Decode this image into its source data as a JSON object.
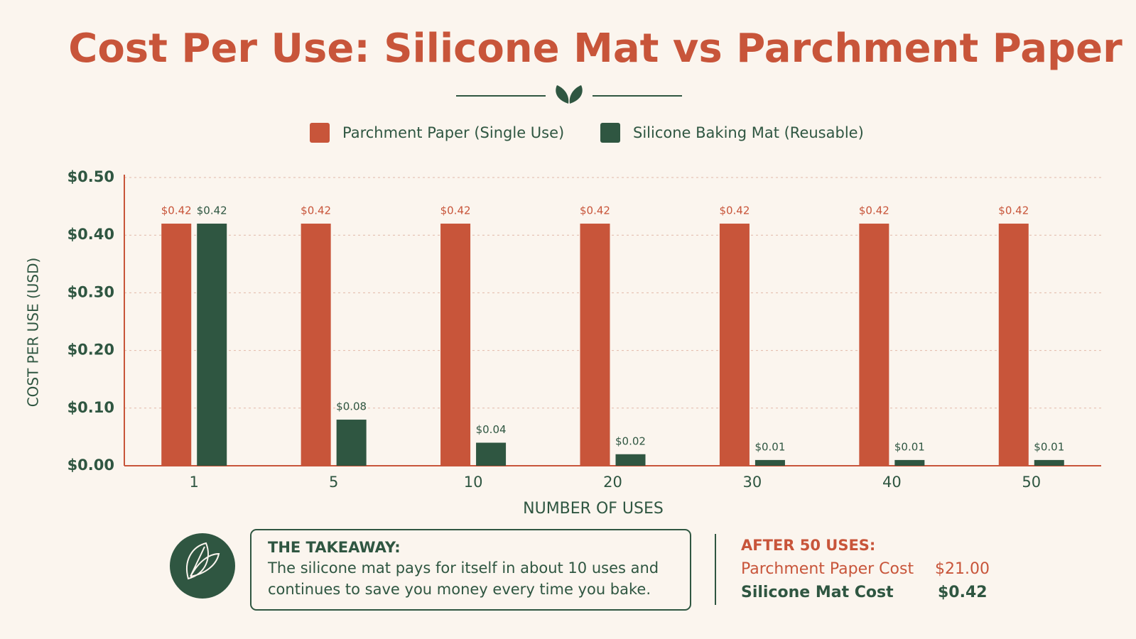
{
  "chart_data": {
    "type": "bar",
    "title": "Cost Per Use: Silicone Mat vs Parchment Paper",
    "x_label": "NUMBER OF USES",
    "y_label": "COST PER USE (USD)",
    "categories": [
      "1",
      "5",
      "10",
      "20",
      "30",
      "40",
      "50"
    ],
    "series": [
      {
        "name": "Parchment Paper (Single Use)",
        "color": "#c8553a",
        "values": [
          0.42,
          0.42,
          0.42,
          0.42,
          0.42,
          0.42,
          0.42
        ],
        "value_labels": [
          "$0.42",
          "$0.42",
          "$0.42",
          "$0.42",
          "$0.42",
          "$0.42",
          "$0.42"
        ]
      },
      {
        "name": "Silicone Baking Mat (Reusable)",
        "color": "#2f5641",
        "values": [
          0.42,
          0.08,
          0.04,
          0.02,
          0.01,
          0.01,
          0.01
        ],
        "value_labels": [
          "$0.42",
          "$0.08",
          "$0.04",
          "$0.02",
          "$0.01",
          "$0.01",
          "$0.01"
        ]
      }
    ],
    "ylim": [
      0,
      0.5
    ],
    "yticks": [
      {
        "value": 0,
        "label": "$0.00"
      },
      {
        "value": 0.1,
        "label": "$0.10"
      },
      {
        "value": 0.2,
        "label": "$0.20"
      },
      {
        "value": 0.3,
        "label": "$0.30"
      },
      {
        "value": 0.4,
        "label": "$0.40"
      },
      {
        "value": 0.5,
        "label": "$0.50"
      }
    ],
    "grid": true,
    "legend": "top"
  },
  "takeaway": {
    "title": "THE TAKEAWAY:",
    "lines": [
      "The silicone mat pays for itself in about 10 uses and",
      "continues to save you money every time you bake."
    ]
  },
  "summary": {
    "title": "AFTER 50 USES:",
    "rows": [
      [
        "Parchment Paper Cost",
        "$21.00"
      ],
      [
        "Silicone Mat Cost",
        "$0.42"
      ]
    ]
  }
}
